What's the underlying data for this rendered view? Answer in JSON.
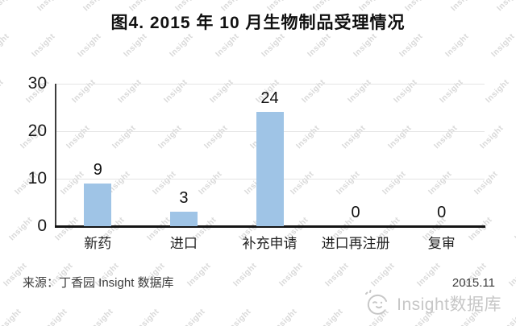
{
  "title": "图4. 2015 年 10 月生物制品受理情况",
  "watermark": {
    "text": "Insight"
  },
  "chart_data": {
    "type": "bar",
    "title": "图4. 2015 年 10 月生物制品受理情况",
    "categories": [
      "新药",
      "进口",
      "补充申请",
      "进口再注册",
      "复审"
    ],
    "values": [
      9,
      3,
      24,
      0,
      0
    ],
    "xlabel": "",
    "ylabel": "",
    "ylim": [
      0,
      30
    ],
    "yticks": [
      0,
      10,
      20,
      30
    ],
    "grid": true,
    "legend_position": "none",
    "bar_color": "#9fc4e6",
    "gridline_color": "#e4e4e4",
    "axis_color": "#141414"
  },
  "footer": {
    "source": "来源：丁香园 Insight 数据库",
    "date": "2015.11",
    "brand": "Insight数据库",
    "brand_icon": "smiley-face-icon",
    "brand_color": "#c7c7c7"
  }
}
